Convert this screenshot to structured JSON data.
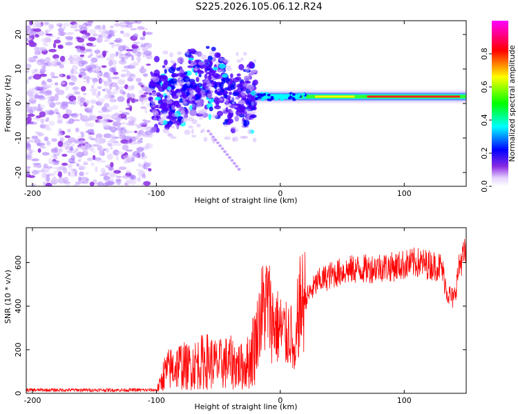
{
  "figure": {
    "title": "S225.2026.105.06.12.R24"
  },
  "chart_data": [
    {
      "type": "heatmap",
      "title": "S225.2026.105.06.12.R24",
      "xlabel": "Height of straight line (km)",
      "ylabel": "Frequency (Hz)",
      "xlim": [
        -205,
        150
      ],
      "ylim": [
        -24,
        24
      ],
      "x_ticks": [
        -200,
        -100,
        0,
        100
      ],
      "x_tick_labels": [
        "-200",
        "-100",
        "0",
        "100"
      ],
      "y_ticks": [
        -20,
        -10,
        0,
        10,
        20
      ],
      "y_tick_labels": [
        "-20",
        "-10",
        "0",
        "10",
        "20"
      ],
      "colorbar": {
        "label": "Normalized spectral amplitude",
        "range": [
          0,
          1
        ],
        "ticks": [
          0.0,
          0.2,
          0.4,
          0.6,
          0.8
        ],
        "tick_labels": [
          "0.0",
          "0.2",
          "0.4",
          "0.6",
          "0.8"
        ],
        "colors": [
          "#ffffff",
          "#7a00ff",
          "#0000ff",
          "#00ffff",
          "#00ff00",
          "#ffff00",
          "#ff0000",
          "#ff00ff"
        ]
      },
      "description_regions": {
        "noise_x_range": [
          -205,
          -105
        ],
        "turbulent_x_range": [
          -105,
          -20
        ],
        "carrier_x_range": [
          -20,
          150
        ],
        "carrier_frequency": 2
      }
    },
    {
      "type": "line",
      "xlabel": "Height of straight line (km)",
      "ylabel": "SNR (10 * v/v)",
      "xlim": [
        -205,
        150
      ],
      "ylim": [
        0,
        760
      ],
      "x_ticks": [
        -200,
        -100,
        0,
        100
      ],
      "x_tick_labels": [
        "-200",
        "-100",
        "0",
        "100"
      ],
      "y_ticks": [
        0,
        200,
        400,
        600
      ],
      "y_tick_labels": [
        "0",
        "200",
        "400",
        "600"
      ],
      "series": [
        {
          "name": "SNR",
          "color": "#ff0000",
          "x": [
            -205,
            -190,
            -175,
            -160,
            -145,
            -130,
            -115,
            -100,
            -97,
            -94,
            -90,
            -85,
            -80,
            -75,
            -70,
            -65,
            -60,
            -55,
            -50,
            -45,
            -40,
            -35,
            -30,
            -25,
            -22,
            -20,
            -18,
            -15,
            -12,
            -10,
            -7,
            -5,
            -3,
            0,
            3,
            5,
            8,
            10,
            12,
            14,
            16,
            20,
            25,
            30,
            40,
            50,
            60,
            70,
            80,
            90,
            100,
            110,
            120,
            130,
            135,
            140,
            145,
            150
          ],
          "y": [
            15,
            15,
            15,
            15,
            15,
            15,
            15,
            15,
            40,
            90,
            110,
            120,
            130,
            120,
            130,
            140,
            150,
            140,
            130,
            140,
            140,
            130,
            120,
            150,
            200,
            240,
            300,
            380,
            400,
            420,
            340,
            320,
            310,
            290,
            280,
            260,
            300,
            200,
            120,
            350,
            400,
            430,
            470,
            510,
            540,
            560,
            570,
            570,
            580,
            580,
            590,
            600,
            590,
            580,
            460,
            430,
            600,
            650
          ]
        }
      ]
    }
  ]
}
